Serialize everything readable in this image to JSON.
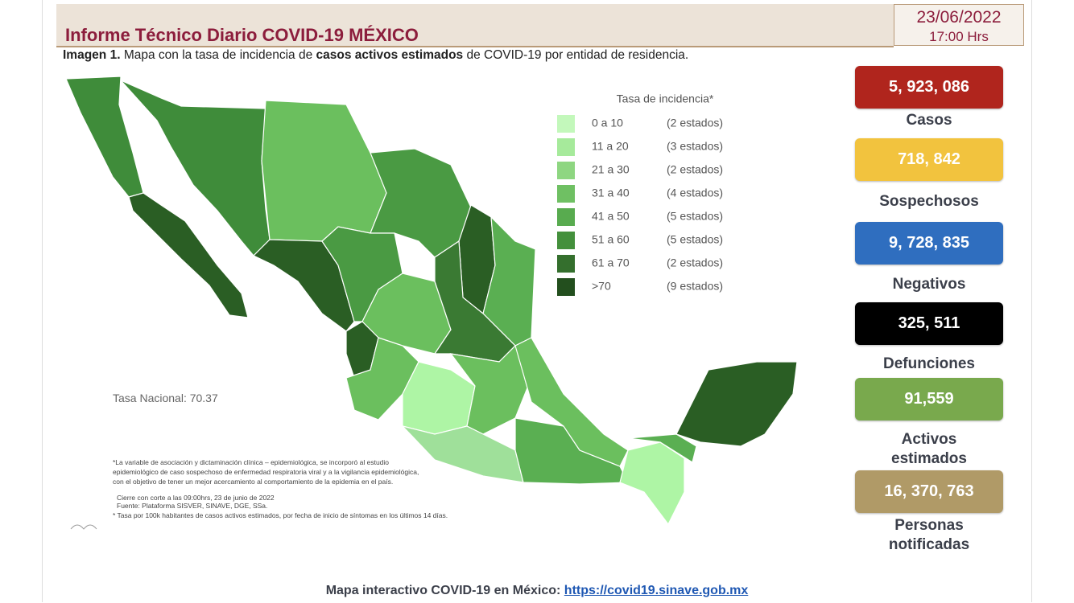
{
  "header": {
    "title": "Informe Técnico Diario COVID-19 MÉXICO",
    "date": "23/06/2022",
    "time": "17:00 Hrs"
  },
  "caption": {
    "label": "Imagen 1.",
    "text_1": "Mapa con la tasa de incidencia de",
    "emphasis": "casos activos estimados",
    "text_2": "de COVID-19 por entidad de residencia."
  },
  "legend": {
    "title": "Tasa de incidencia*",
    "items": [
      {
        "range": "0 a  10",
        "count": "(2 estados)",
        "color": "#c3f8bb"
      },
      {
        "range": "11 a  20",
        "count": "(3 estados)",
        "color": "#a6ea9b"
      },
      {
        "range": "21 a  30",
        "count": "(2 estados)",
        "color": "#8ed681"
      },
      {
        "range": "31 a  40",
        "count": "(4 estados)",
        "color": "#6fc063"
      },
      {
        "range": "41 a  50",
        "count": "(5 estados)",
        "color": "#58ab4f"
      },
      {
        "range": "51 a  60",
        "count": "(5 estados)",
        "color": "#44903c"
      },
      {
        "range": "61 a  70",
        "count": "(2 estados)",
        "color": "#346f2d"
      },
      {
        "range": ">70",
        "count": "(9 estados)",
        "color": "#234f1e"
      }
    ]
  },
  "national_rate": "Tasa Nacional: 70.37",
  "notes": [
    "*La variable de asociación y dictaminación clínica – epidemiológica, se incorporó al estudio",
    "epidemiológico de caso sospechoso de enfermedad respiratoria viral y a la vigilancia epidemiológica,",
    "con el objetivo de tener un mejor acercamiento al comportamiento de la epidemia en el país.",
    "Cierre con corte a las 09:00hrs, 23 de junio de 2022",
    "Fuente: Plataforma SISVER, SINAVE, DGE, SSa.",
    "* Tasa por 100k habitantes de casos activos estimados, por fecha de inicio de síntomas en los últimos 14 días."
  ],
  "stats": [
    {
      "value": "5, 923, 086",
      "label": "Casos",
      "color": "#b0251d"
    },
    {
      "value": "718, 842",
      "label": "Sospechosos",
      "color": "#f2c33e"
    },
    {
      "value": "9, 728, 835",
      "label": "Negativos",
      "color": "#2f6ebf"
    },
    {
      "value": "325, 511",
      "label": "Defunciones",
      "color": "#000000"
    },
    {
      "value": "91,559",
      "label": "Activos estimados",
      "color": "#79a94d"
    },
    {
      "value": "16, 370, 763",
      "label": "Personas notificadas",
      "color": "#b09a67"
    }
  ],
  "footer": {
    "text": "Mapa interactivo COVID-19 en México:",
    "link": "https://covid19.sinave.gob.mx"
  }
}
